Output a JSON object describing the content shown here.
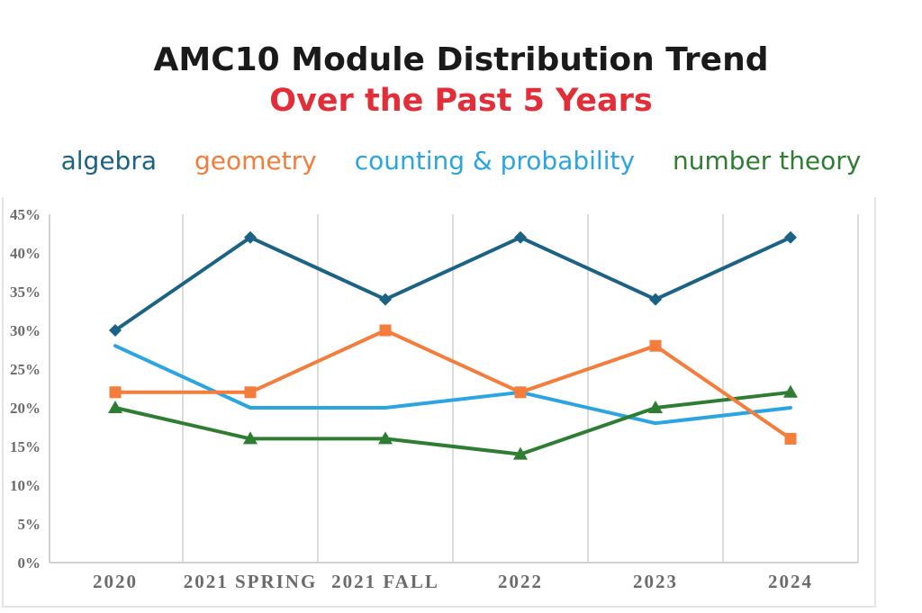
{
  "title": {
    "line1": "AMC10 Module Distribution Trend",
    "line2": "Over the Past 5 Years",
    "line1_color": "#1a1a1a",
    "line2_color": "#e12e39"
  },
  "legend": {
    "items": [
      {
        "label": "algebra",
        "color": "#1c6285"
      },
      {
        "label": "geometry",
        "color": "#f47d3b"
      },
      {
        "label": "counting & probability",
        "color": "#2aa5e1"
      },
      {
        "label": "number theory",
        "color": "#2e7d32"
      }
    ]
  },
  "chart_data": {
    "type": "line",
    "title": "AMC10 Module Distribution Trend Over the Past 5 Years",
    "categories": [
      "2020",
      "2021 SPRING",
      "2021 FALL",
      "2022",
      "2023",
      "2024"
    ],
    "series": [
      {
        "name": "algebra",
        "color": "#1c6285",
        "marker": "diamond",
        "values": [
          30,
          42,
          34,
          42,
          34,
          42
        ]
      },
      {
        "name": "geometry",
        "color": "#f47d3b",
        "marker": "square",
        "values": [
          22,
          22,
          30,
          22,
          28,
          16
        ]
      },
      {
        "name": "counting & probability",
        "color": "#2aa5e1",
        "marker": "none",
        "values": [
          28,
          20,
          20,
          22,
          18,
          20
        ]
      },
      {
        "name": "number theory",
        "color": "#2e7d32",
        "marker": "triangle-up",
        "values": [
          20,
          16,
          16,
          14,
          20,
          22
        ]
      }
    ],
    "y_ticks": [
      "0%",
      "5%",
      "10%",
      "15%",
      "20%",
      "25%",
      "30%",
      "35%",
      "40%",
      "45%"
    ],
    "ylim": [
      0,
      45
    ],
    "xlabel": "",
    "ylabel": "",
    "grid": "vertical-only",
    "legend_position": "top",
    "axis_text_color": "#6b6b6b",
    "gridline_color": "#dcdcdc",
    "axis_line_color": "#d2d2d2"
  }
}
